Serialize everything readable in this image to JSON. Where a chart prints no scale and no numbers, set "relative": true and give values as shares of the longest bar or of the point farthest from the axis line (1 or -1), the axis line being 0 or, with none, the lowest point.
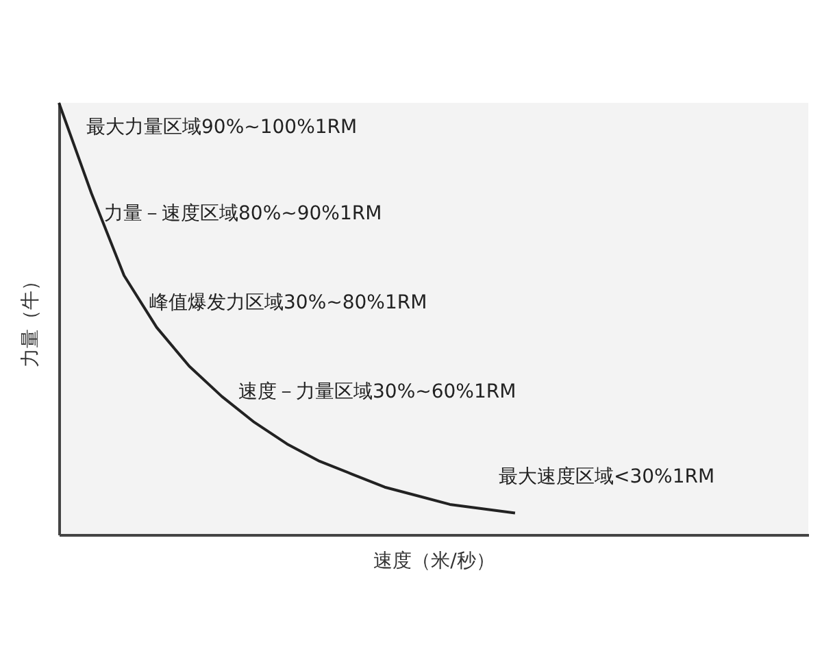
{
  "chart_data": {
    "type": "line",
    "relative": true,
    "tick_labels": false,
    "grid": false,
    "xlabel": "速度（米/秒）",
    "ylabel": "力量（牛）",
    "categories": [
      null,
      null,
      null,
      null,
      null,
      null,
      null,
      null,
      null,
      null,
      null,
      null,
      null,
      null,
      null,
      null,
      null,
      null,
      null,
      null,
      null,
      null,
      null,
      null
    ],
    "series": [
      {
        "color": "#222222",
        "values": [
          1.0,
          0.79,
          0.6,
          0.48,
          0.39,
          0.32,
          0.26,
          0.21,
          0.17,
          0.14,
          0.11,
          0.09,
          0.07,
          0.06,
          0.05,
          null,
          null,
          null,
          null,
          null,
          null,
          null,
          null,
          null
        ]
      }
    ],
    "annotations": [
      "最大力量区域90%~100%1RM",
      "力量－速度区域80%~90%1RM",
      "峰值爆发力区域30%~80%1RM",
      "速度－力量区域30%~60%1RM",
      "最大速度区域<30%1RM"
    ]
  }
}
